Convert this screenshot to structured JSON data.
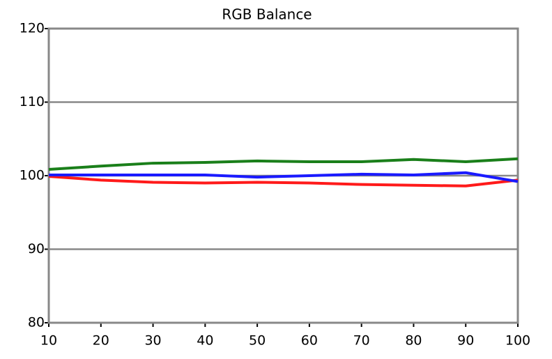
{
  "chart_data": {
    "type": "line",
    "title": "RGB Balance",
    "x": [
      10,
      20,
      30,
      40,
      50,
      60,
      70,
      80,
      90,
      100
    ],
    "series": [
      {
        "color": "#1a7f1a",
        "values": [
          100.85,
          101.3,
          101.7,
          101.8,
          102.0,
          101.9,
          101.9,
          102.2,
          101.9,
          102.3
        ]
      },
      {
        "color": "#ff1a1a",
        "values": [
          99.9,
          99.4,
          99.1,
          99.0,
          99.1,
          99.0,
          98.8,
          98.7,
          98.6,
          99.4
        ]
      },
      {
        "color": "#1a1aff",
        "values": [
          100.1,
          100.1,
          100.1,
          100.1,
          99.8,
          100.0,
          100.2,
          100.1,
          100.4,
          99.2
        ]
      }
    ],
    "xlim": [
      10,
      100
    ],
    "xticks": [
      10,
      20,
      30,
      40,
      50,
      60,
      70,
      80,
      90,
      100
    ],
    "ylim": [
      80,
      120
    ],
    "yticks": [
      80,
      90,
      100,
      110,
      120
    ],
    "grid": true
  }
}
